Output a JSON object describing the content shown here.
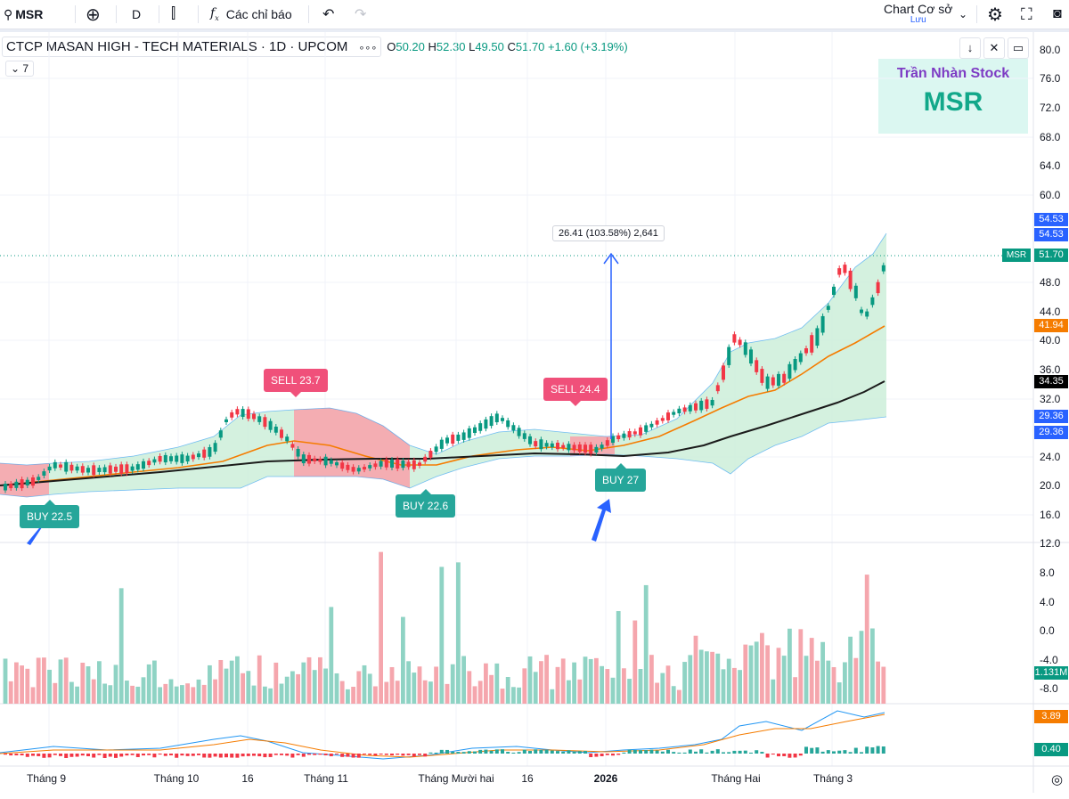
{
  "toolbar": {
    "search_symbol": "MSR",
    "interval": "D",
    "indicators_label": "Các chỉ báo",
    "layout_name": "Chart Cơ sở",
    "layout_status": "Lưu"
  },
  "legend": {
    "title": "CTCP MASAN HIGH - TECH MATERIALS · 1D · UPCOM",
    "more": "∘∘∘",
    "o_label": "O",
    "o": "50.20",
    "h_label": "H",
    "h": "52.30",
    "l_label": "L",
    "l": "49.50",
    "c_label": "C",
    "c": "51.70",
    "change": "+1.60 (+3.19%)",
    "indicator_count": "7"
  },
  "watermark": {
    "name": "Trần Nhàn Stock",
    "symbol": "MSR"
  },
  "measure_label": "26.41 (103.58%) 2,641",
  "signals": [
    {
      "text": "BUY 22.5",
      "type": "buy"
    },
    {
      "text": "SELL 23.7",
      "type": "sell"
    },
    {
      "text": "BUY 22.6",
      "type": "buy"
    },
    {
      "text": "SELL 24.4",
      "type": "sell"
    },
    {
      "text": "BUY 27",
      "type": "buy"
    }
  ],
  "price_axis": {
    "ticks": [
      "80.0",
      "76.0",
      "72.0",
      "68.0",
      "64.0",
      "60.0",
      "48.0",
      "44.0",
      "40.0",
      "36.0",
      "32.0",
      "24.0",
      "20.0",
      "16.0"
    ],
    "labels": [
      {
        "text": "54.53",
        "color": "#2962ff"
      },
      {
        "text": "54.53",
        "color": "#2962ff"
      },
      {
        "text": "51.70",
        "color": "#089981",
        "tag": "MSR"
      },
      {
        "text": "41.94",
        "color": "#f57c00"
      },
      {
        "text": "34.35",
        "color": "#000000"
      },
      {
        "text": "29.36",
        "color": "#2962ff"
      },
      {
        "text": "29.36",
        "color": "#2962ff"
      }
    ]
  },
  "volume_axis": {
    "ticks": [
      "12.0",
      "8.0",
      "4.0",
      "0.0",
      "-4.0",
      "-8.0"
    ],
    "label": "1.131M"
  },
  "macd_axis": {
    "labels": [
      {
        "text": "3.89",
        "color": "#f57c00"
      },
      {
        "text": "0.40",
        "color": "#089981"
      }
    ]
  },
  "time_axis": [
    "Tháng 9",
    "Tháng 10",
    "16",
    "Tháng 11",
    "Tháng Mười hai",
    "16",
    "2026",
    "Tháng Hai",
    "Tháng 3"
  ],
  "colors": {
    "up": "#089981",
    "down": "#f23645",
    "ma_fast": "#f57c00",
    "ma_slow": "#000000",
    "band": "#2196f3"
  }
}
